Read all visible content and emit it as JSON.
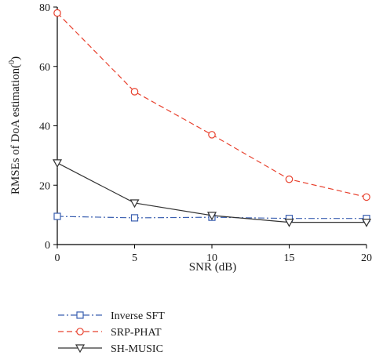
{
  "chart_data": {
    "type": "line",
    "xlabel": "SNR (dB)",
    "ylabel": "RMSEs of DoA estimation(",
    "ylabel_superscript": "0",
    "ylabel_suffix": ")",
    "xlim": [
      0,
      20
    ],
    "ylim": [
      0,
      80
    ],
    "xticks": [
      0,
      5,
      10,
      15,
      20
    ],
    "yticks": [
      0,
      20,
      40,
      60,
      80
    ],
    "grid": false,
    "legend_position": "bottom-left",
    "x": [
      0,
      5,
      10,
      15,
      20
    ],
    "series": [
      {
        "name": "Inverse SFT",
        "values": [
          9.5,
          9.0,
          9.2,
          8.8,
          8.8
        ],
        "color": "#3a5fb0",
        "dash": "dashdot",
        "marker": "square"
      },
      {
        "name": "SRP-PHAT",
        "values": [
          78.0,
          51.5,
          37.0,
          22.0,
          16.0
        ],
        "color": "#e8412e",
        "dash": "dashed",
        "marker": "circle"
      },
      {
        "name": "SH-MUSIC",
        "values": [
          27.5,
          14.0,
          9.8,
          7.5,
          7.5
        ],
        "color": "#333333",
        "dash": "solid",
        "marker": "triangle-down"
      }
    ]
  }
}
